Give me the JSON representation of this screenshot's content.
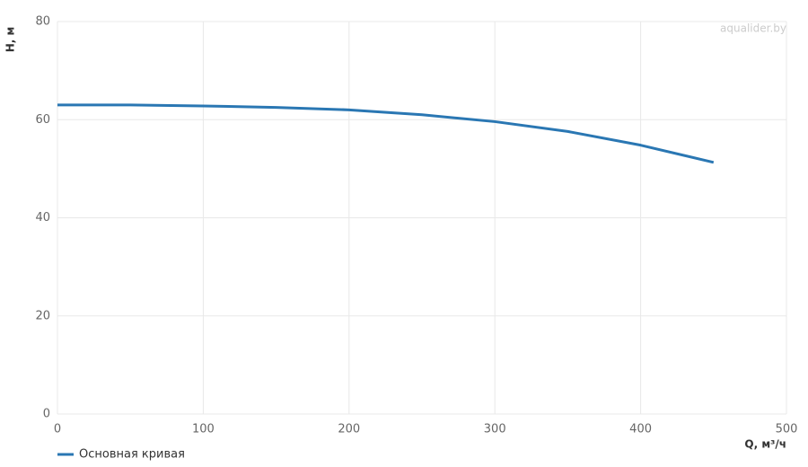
{
  "chart_data": {
    "type": "line",
    "x_label": "Q, м³/ч",
    "y_label": "H, м",
    "watermark": "aqualider.by",
    "x": [
      0,
      50,
      100,
      150,
      200,
      250,
      300,
      350,
      400,
      450
    ],
    "series": [
      {
        "name": "Основная кривая",
        "color": "#2a77b3",
        "values": [
          63,
          63,
          62.8,
          62.5,
          62,
          61,
          59.6,
          57.6,
          54.8,
          51.3
        ]
      }
    ],
    "xlim": [
      0,
      500
    ],
    "xticks": [
      0,
      100,
      200,
      300,
      400,
      500
    ],
    "ylim": [
      0,
      80
    ],
    "yticks": [
      0,
      20,
      40,
      60,
      80
    ],
    "grid": true
  }
}
